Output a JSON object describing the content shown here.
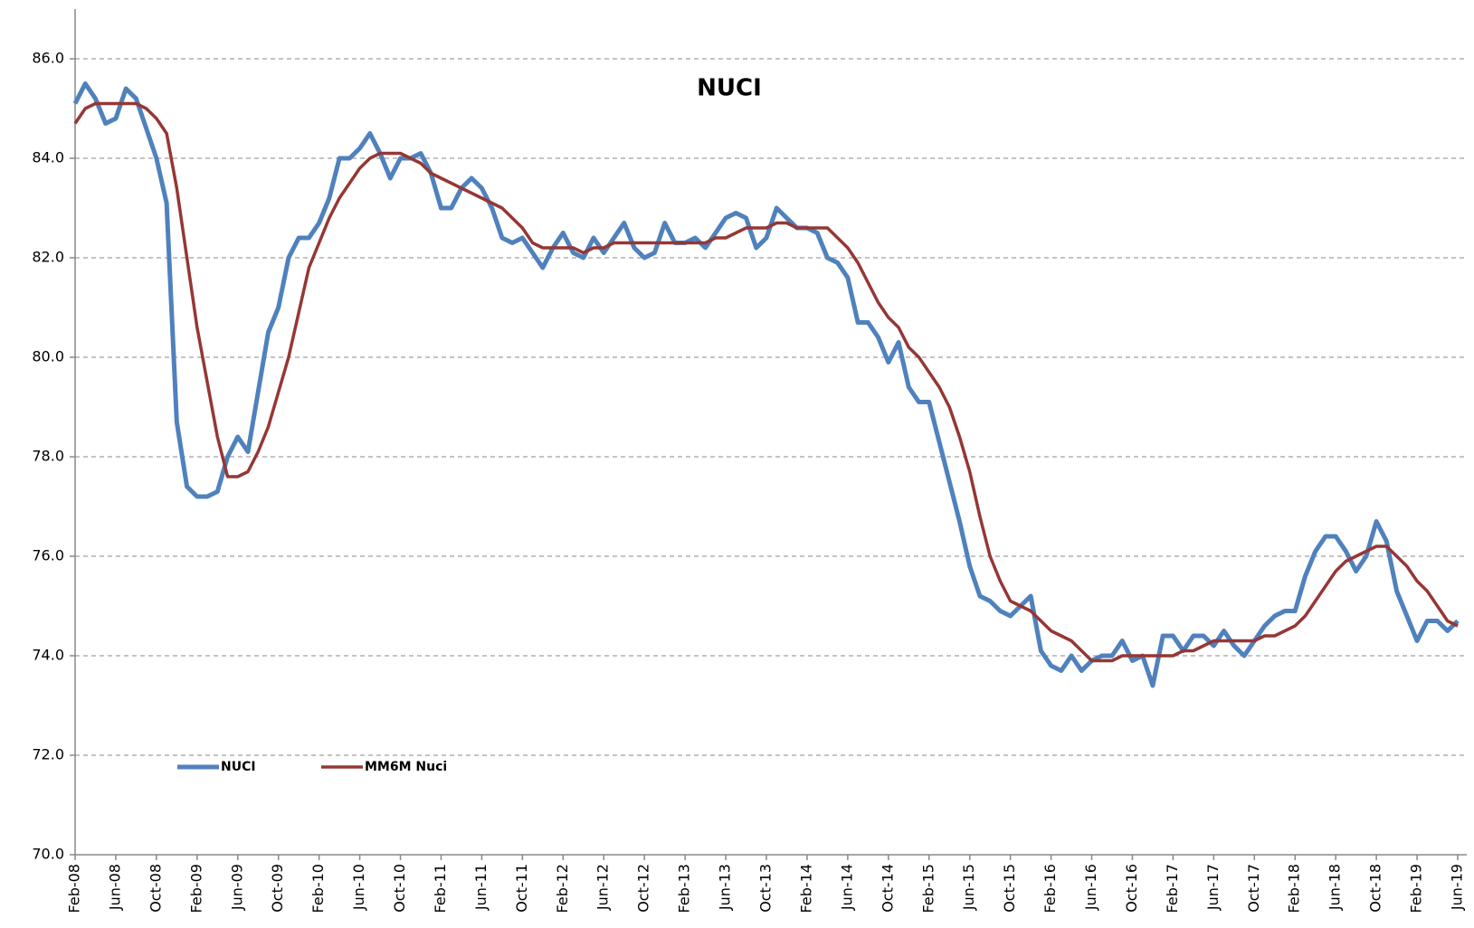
{
  "chart_data": {
    "type": "line",
    "title": "NUCI",
    "categories": [
      "Feb-08",
      null,
      null,
      null,
      "Jun-08",
      null,
      null,
      null,
      "Oct-08",
      null,
      null,
      null,
      "Feb-09",
      null,
      null,
      null,
      "Jun-09",
      null,
      null,
      null,
      "Oct-09",
      null,
      null,
      null,
      "Feb-10",
      null,
      null,
      null,
      "Jun-10",
      null,
      null,
      null,
      "Oct-10",
      null,
      null,
      null,
      "Feb-11",
      null,
      null,
      null,
      "Jun-11",
      null,
      null,
      null,
      "Oct-11",
      null,
      null,
      null,
      "Feb-12",
      null,
      null,
      null,
      "Jun-12",
      null,
      null,
      null,
      "Oct-12",
      null,
      null,
      null,
      "Feb-13",
      null,
      null,
      null,
      "Jun-13",
      null,
      null,
      null,
      "Oct-13",
      null,
      null,
      null,
      "Feb-14",
      null,
      null,
      null,
      "Jun-14",
      null,
      null,
      null,
      "Oct-14",
      null,
      null,
      null,
      "Feb-15",
      null,
      null,
      null,
      "Jun-15",
      null,
      null,
      null,
      "Oct-15",
      null,
      null,
      null,
      "Feb-16",
      null,
      null,
      null,
      "Jun-16",
      null,
      null,
      null,
      "Oct-16",
      null,
      null,
      null,
      "Feb-17",
      null,
      null,
      null,
      "Jun-17",
      null,
      null,
      null,
      "Oct-17",
      null,
      null,
      null,
      "Feb-18",
      null,
      null,
      null,
      "Jun-18",
      null,
      null,
      null,
      "Oct-18",
      null,
      null,
      null,
      "Feb-19",
      null,
      null,
      null,
      "Jun-19"
    ],
    "series": [
      {
        "name": "NUCI",
        "color": "#4f81bd",
        "width": 5,
        "values": [
          85.1,
          85.5,
          85.2,
          84.7,
          84.8,
          85.4,
          85.2,
          84.6,
          84.0,
          83.1,
          78.7,
          77.4,
          77.2,
          77.2,
          77.3,
          78.0,
          78.4,
          78.1,
          79.3,
          80.5,
          81.0,
          82.0,
          82.4,
          82.4,
          82.7,
          83.2,
          84.0,
          84.0,
          84.2,
          84.5,
          84.1,
          83.6,
          84.0,
          84.0,
          84.1,
          83.7,
          83.0,
          83.0,
          83.4,
          83.6,
          83.4,
          83.0,
          82.4,
          82.3,
          82.4,
          82.1,
          81.8,
          82.2,
          82.5,
          82.1,
          82.0,
          82.4,
          82.1,
          82.4,
          82.7,
          82.2,
          82.0,
          82.1,
          82.7,
          82.3,
          82.3,
          82.4,
          82.2,
          82.5,
          82.8,
          82.9,
          82.8,
          82.2,
          82.4,
          83.0,
          82.8,
          82.6,
          82.6,
          82.5,
          82.0,
          81.9,
          81.6,
          80.7,
          80.7,
          80.4,
          79.9,
          80.3,
          79.4,
          79.1,
          79.1,
          78.3,
          77.5,
          76.7,
          75.8,
          75.2,
          75.1,
          74.9,
          74.8,
          75.0,
          75.2,
          74.1,
          73.8,
          73.7,
          74.0,
          73.7,
          73.9,
          74.0,
          74.0,
          74.3,
          73.9,
          74.0,
          73.4,
          74.4,
          74.4,
          74.1,
          74.4,
          74.4,
          74.2,
          74.5,
          74.2,
          74.0,
          74.3,
          74.6,
          74.8,
          74.9,
          74.9,
          75.6,
          76.1,
          76.4,
          76.4,
          76.1,
          75.7,
          76.0,
          76.7,
          76.3,
          75.3,
          74.8,
          74.3,
          74.7,
          74.7,
          74.5,
          74.7
        ]
      },
      {
        "name": "MM6M Nuci",
        "color": "#953735",
        "width": 3.5,
        "values": [
          84.7,
          85.0,
          85.1,
          85.1,
          85.1,
          85.1,
          85.1,
          85.0,
          84.8,
          84.5,
          83.4,
          82.0,
          80.6,
          79.5,
          78.4,
          77.6,
          77.6,
          77.7,
          78.1,
          78.6,
          79.3,
          80.0,
          80.9,
          81.8,
          82.3,
          82.8,
          83.2,
          83.5,
          83.8,
          84.0,
          84.1,
          84.1,
          84.1,
          84.0,
          83.9,
          83.7,
          83.6,
          83.5,
          83.4,
          83.3,
          83.2,
          83.1,
          83.0,
          82.8,
          82.6,
          82.3,
          82.2,
          82.2,
          82.2,
          82.2,
          82.1,
          82.2,
          82.2,
          82.3,
          82.3,
          82.3,
          82.3,
          82.3,
          82.3,
          82.3,
          82.3,
          82.3,
          82.3,
          82.4,
          82.4,
          82.5,
          82.6,
          82.6,
          82.6,
          82.7,
          82.7,
          82.6,
          82.6,
          82.6,
          82.6,
          82.4,
          82.2,
          81.9,
          81.5,
          81.1,
          80.8,
          80.6,
          80.2,
          80.0,
          79.7,
          79.4,
          79.0,
          78.4,
          77.7,
          76.8,
          76.0,
          75.5,
          75.1,
          75.0,
          74.9,
          74.7,
          74.5,
          74.4,
          74.3,
          74.1,
          73.9,
          73.9,
          73.9,
          74.0,
          74.0,
          74.0,
          74.0,
          74.0,
          74.0,
          74.1,
          74.1,
          74.2,
          74.3,
          74.3,
          74.3,
          74.3,
          74.3,
          74.4,
          74.4,
          74.5,
          74.6,
          74.8,
          75.1,
          75.4,
          75.7,
          75.9,
          76.0,
          76.1,
          76.2,
          76.2,
          76.0,
          75.8,
          75.5,
          75.3,
          75.0,
          74.7,
          74.6
        ]
      }
    ],
    "ylim": [
      70,
      87
    ],
    "yticks": [
      {
        "value": 70,
        "label": "70.0"
      },
      {
        "value": 72,
        "label": "72.0"
      },
      {
        "value": 74,
        "label": "74.0"
      },
      {
        "value": 76,
        "label": "76.0"
      },
      {
        "value": 78,
        "label": "78.0"
      },
      {
        "value": 80,
        "label": "80.0"
      },
      {
        "value": 82,
        "label": "82.0"
      },
      {
        "value": 84,
        "label": "84.0"
      },
      {
        "value": 86,
        "label": "86.0"
      }
    ],
    "grid": true,
    "legend": "lower left"
  }
}
